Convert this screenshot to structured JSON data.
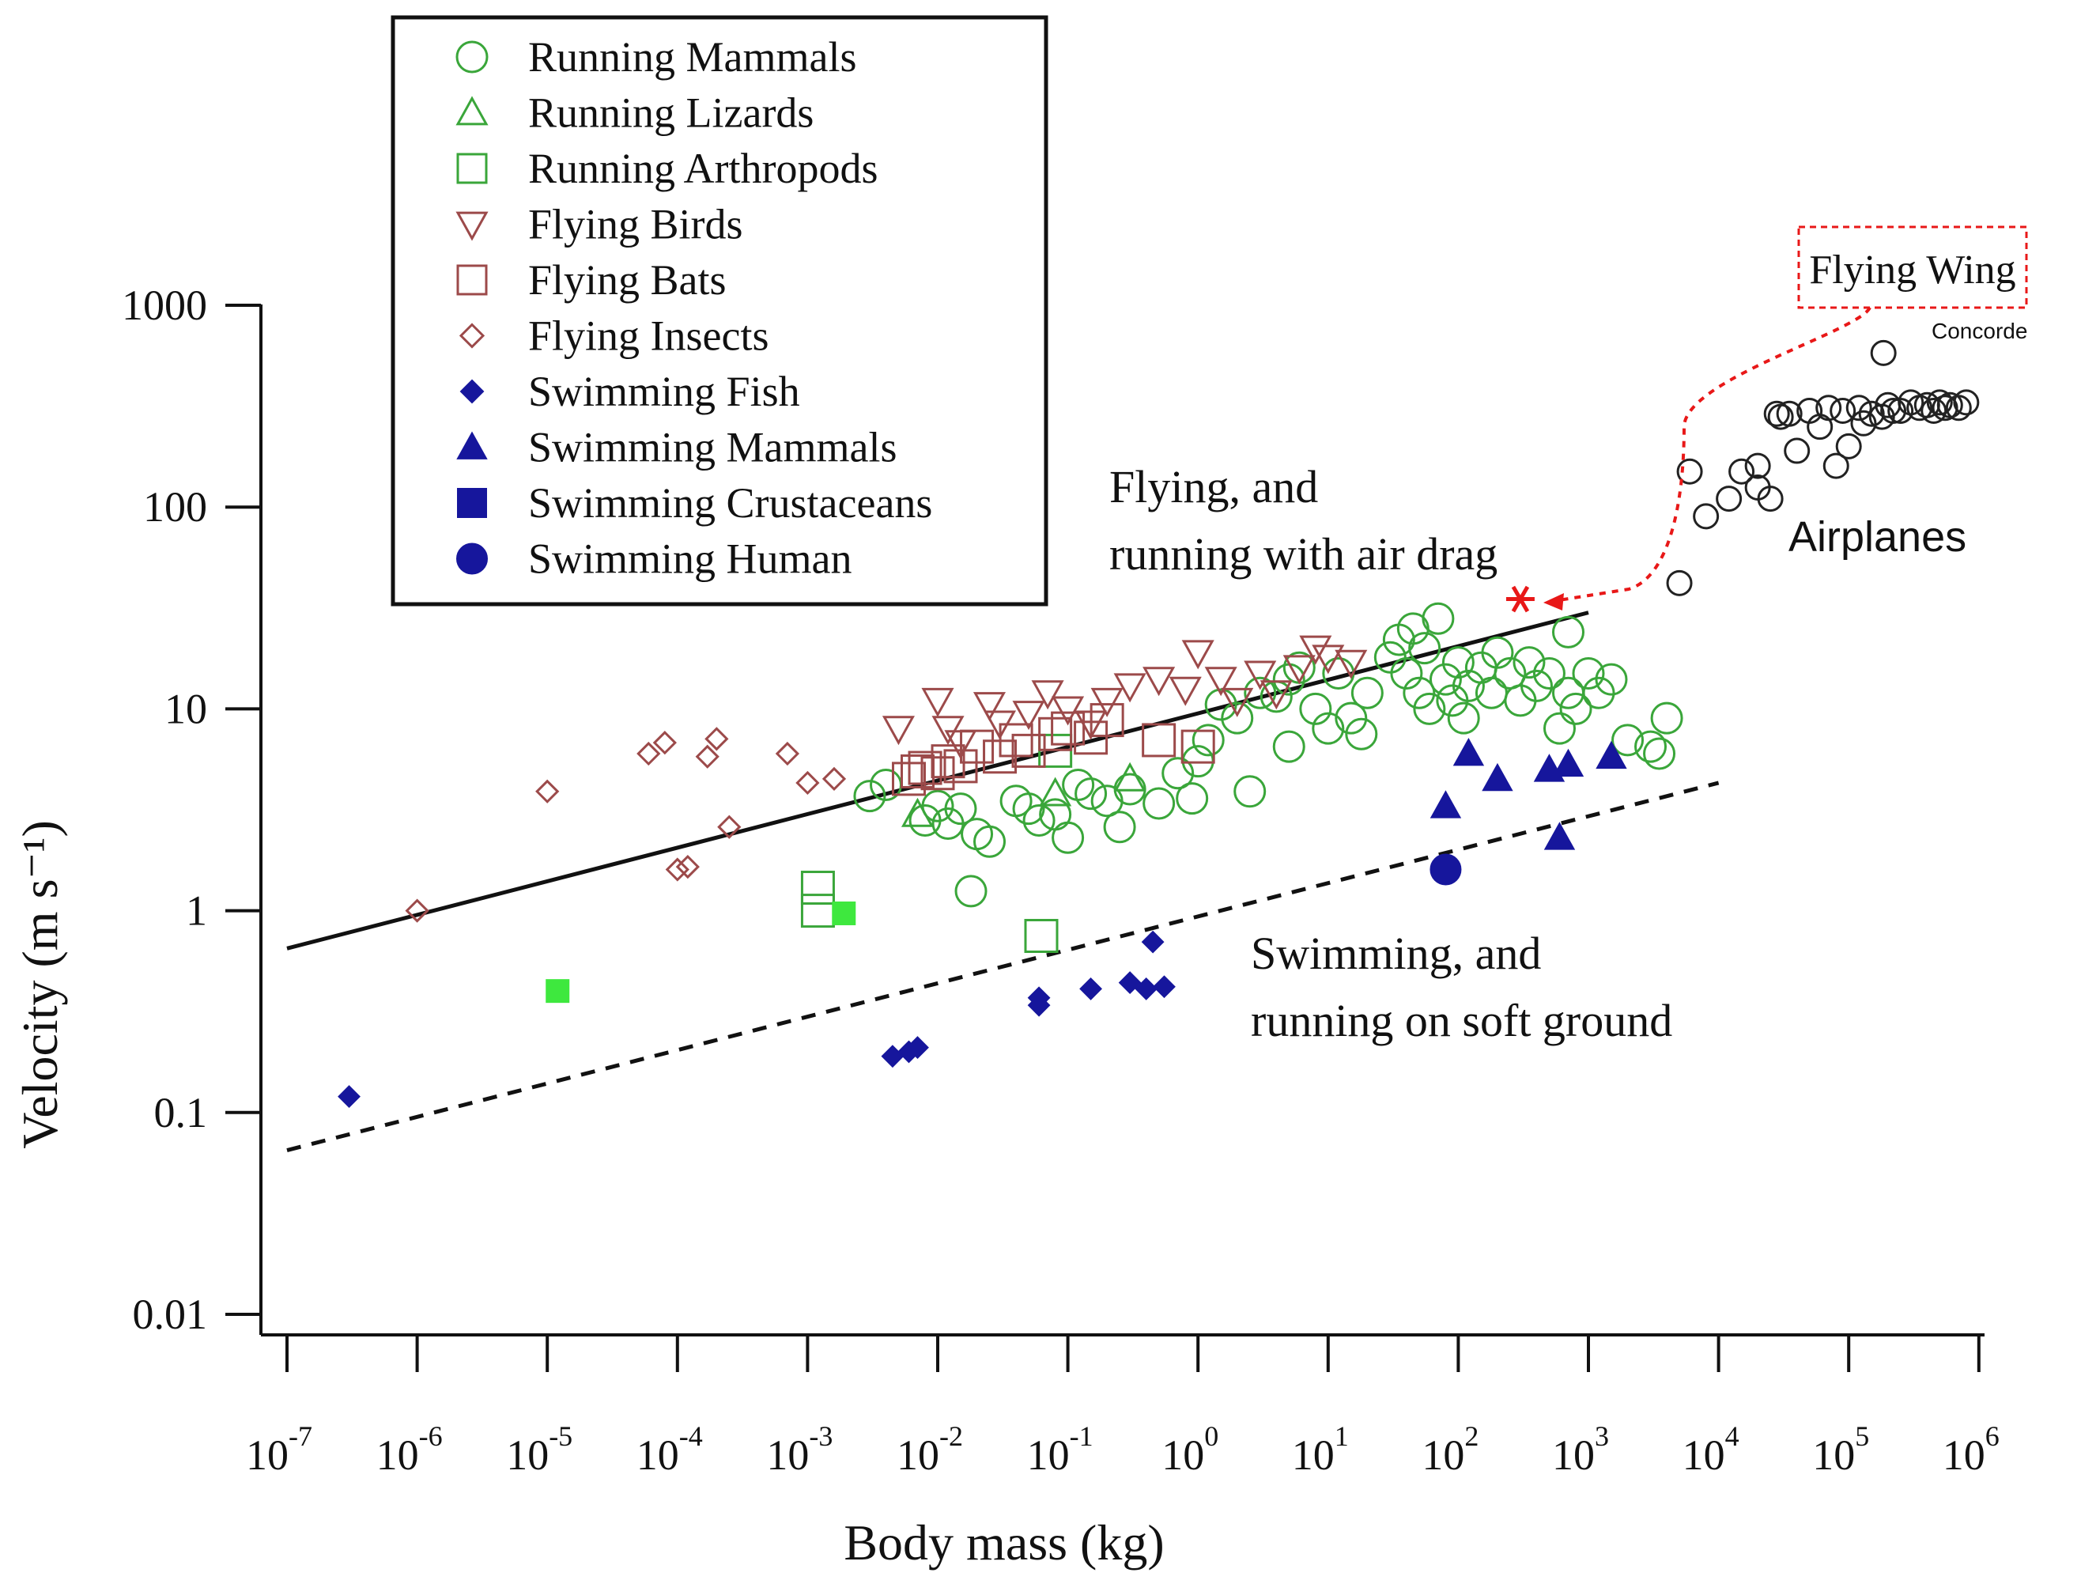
{
  "chart_data": {
    "type": "scatter",
    "title": "",
    "xlabel": "Body mass (kg)",
    "ylabel": "Velocity (m s⁻¹)",
    "x_scale": "log",
    "y_scale": "log",
    "xlim": [
      1e-07,
      1000000.0
    ],
    "ylim": [
      0.01,
      1000
    ],
    "x_ticks": [
      {
        "base": "10",
        "exp": "-7"
      },
      {
        "base": "10",
        "exp": "-6"
      },
      {
        "base": "10",
        "exp": "-5"
      },
      {
        "base": "10",
        "exp": "-4"
      },
      {
        "base": "10",
        "exp": "-3"
      },
      {
        "base": "10",
        "exp": "-2"
      },
      {
        "base": "10",
        "exp": "-1"
      },
      {
        "base": "10",
        "exp": "0"
      },
      {
        "base": "10",
        "exp": "1"
      },
      {
        "base": "10",
        "exp": "2"
      },
      {
        "base": "10",
        "exp": "3"
      },
      {
        "base": "10",
        "exp": "4"
      },
      {
        "base": "10",
        "exp": "5"
      },
      {
        "base": "10",
        "exp": "6"
      }
    ],
    "y_ticks": [
      "0.01",
      "0.1",
      "1",
      "10",
      "100",
      "1000"
    ],
    "legend_position": "top-left",
    "series": [
      {
        "name": "Running Mammals",
        "marker": "circle-open",
        "color": "#3aa63a",
        "points": [
          [
            0.008,
            2.8
          ],
          [
            0.01,
            3.3
          ],
          [
            0.012,
            2.7
          ],
          [
            0.015,
            3.2
          ],
          [
            0.02,
            2.4
          ],
          [
            0.025,
            2.2
          ],
          [
            0.04,
            3.5
          ],
          [
            0.05,
            3.2
          ],
          [
            0.06,
            2.8
          ],
          [
            0.08,
            3.0
          ],
          [
            0.1,
            2.3
          ],
          [
            0.12,
            4.2
          ],
          [
            0.15,
            3.8
          ],
          [
            0.2,
            3.5
          ],
          [
            0.25,
            2.6
          ],
          [
            0.3,
            4.0
          ],
          [
            0.5,
            3.4
          ],
          [
            0.7,
            4.8
          ],
          [
            0.9,
            3.6
          ],
          [
            1.0,
            5.5
          ],
          [
            1.2,
            7.0
          ],
          [
            1.5,
            10.5
          ],
          [
            2.0,
            9.0
          ],
          [
            2.5,
            3.9
          ],
          [
            3.0,
            12.0
          ],
          [
            4.0,
            11.5
          ],
          [
            5.0,
            6.5
          ],
          [
            5.0,
            14.0
          ],
          [
            6.0,
            16.0
          ],
          [
            8.0,
            10.0
          ],
          [
            10.0,
            8.0
          ],
          [
            12.0,
            15.0
          ],
          [
            15.0,
            9.0
          ],
          [
            18.0,
            7.5
          ],
          [
            20.0,
            12.0
          ],
          [
            30.0,
            18.0
          ],
          [
            35.0,
            22.0
          ],
          [
            40.0,
            15.0
          ],
          [
            45.0,
            25.0
          ],
          [
            50.0,
            12.0
          ],
          [
            55.0,
            20.0
          ],
          [
            60.0,
            10.0
          ],
          [
            70.0,
            28.0
          ],
          [
            80.0,
            14.0
          ],
          [
            90.0,
            11.0
          ],
          [
            100.0,
            17.0
          ],
          [
            110.0,
            9.0
          ],
          [
            120.0,
            13.0
          ],
          [
            150.0,
            16.0
          ],
          [
            180.0,
            12.0
          ],
          [
            200.0,
            19.0
          ],
          [
            250.0,
            15.0
          ],
          [
            300.0,
            11.0
          ],
          [
            350.0,
            17.0
          ],
          [
            400.0,
            13.0
          ],
          [
            500.0,
            15.0
          ],
          [
            600.0,
            8.0
          ],
          [
            700.0,
            12.0
          ],
          [
            800.0,
            10.0
          ],
          [
            1000.0,
            15.0
          ],
          [
            1200.0,
            12.0
          ],
          [
            1500.0,
            14.0
          ],
          [
            2000.0,
            7.0
          ],
          [
            3000.0,
            6.5
          ],
          [
            4000.0,
            9.0
          ],
          [
            0.018,
            1.25
          ],
          [
            700.0,
            24.0
          ],
          [
            3500.0,
            6.0
          ],
          [
            0.004,
            4.2
          ],
          [
            0.003,
            3.7
          ]
        ]
      },
      {
        "name": "Running Lizards",
        "marker": "triangle-up-open",
        "color": "#3aa63a",
        "points": [
          [
            0.007,
            3.0
          ],
          [
            0.08,
            3.8
          ],
          [
            0.3,
            4.5
          ]
        ]
      },
      {
        "name": "Running Arthropods",
        "marker": "square-open",
        "color": "#3aa63a",
        "points": [
          [
            0.0012,
            1.3
          ],
          [
            0.0012,
            1.0
          ],
          [
            0.0625,
            0.75
          ],
          [
            0.08,
            6.2
          ]
        ]
      },
      {
        "name": "Flying Birds",
        "marker": "triangle-down-open",
        "color": "#9c4a4a",
        "points": [
          [
            0.005,
            8.0
          ],
          [
            0.01,
            11.0
          ],
          [
            0.012,
            8.0
          ],
          [
            0.015,
            6.8
          ],
          [
            0.025,
            10.5
          ],
          [
            0.03,
            8.5
          ],
          [
            0.05,
            9.5
          ],
          [
            0.07,
            12.0
          ],
          [
            0.1,
            10.0
          ],
          [
            0.15,
            8.5
          ],
          [
            0.2,
            11.0
          ],
          [
            0.3,
            13.0
          ],
          [
            0.5,
            14.0
          ],
          [
            0.8,
            12.5
          ],
          [
            1.0,
            19.0
          ],
          [
            1.5,
            14.0
          ],
          [
            2.0,
            11.0
          ],
          [
            3.0,
            15.0
          ],
          [
            4.0,
            12.0
          ],
          [
            6.0,
            16.0
          ],
          [
            8.0,
            20.0
          ],
          [
            10.0,
            18.0
          ],
          [
            15.0,
            17.0
          ]
        ]
      },
      {
        "name": "Flying Bats",
        "marker": "square-open",
        "color": "#9c4a4a",
        "points": [
          [
            0.006,
            4.5
          ],
          [
            0.007,
            4.9
          ],
          [
            0.008,
            5.1
          ],
          [
            0.01,
            4.8
          ],
          [
            0.012,
            5.5
          ],
          [
            0.015,
            5.2
          ],
          [
            0.02,
            6.5
          ],
          [
            0.03,
            5.8
          ],
          [
            0.04,
            7.0
          ],
          [
            0.05,
            6.2
          ],
          [
            0.08,
            7.5
          ],
          [
            0.1,
            8.0
          ],
          [
            0.15,
            7.2
          ],
          [
            0.2,
            8.8
          ],
          [
            0.5,
            7.0
          ],
          [
            1.0,
            6.5
          ]
        ]
      },
      {
        "name": "Flying Insects",
        "marker": "diamond-open",
        "color": "#9c4a4a",
        "points": [
          [
            1e-06,
            1.0
          ],
          [
            1e-05,
            3.9
          ],
          [
            6e-05,
            6.0
          ],
          [
            8e-05,
            6.8
          ],
          [
            0.0001,
            1.6
          ],
          [
            0.00012,
            1.65
          ],
          [
            0.00017,
            5.8
          ],
          [
            0.0002,
            7.1
          ],
          [
            0.00025,
            2.6
          ],
          [
            0.0007,
            6.0
          ],
          [
            0.001,
            4.3
          ],
          [
            0.0016,
            4.5
          ]
        ]
      },
      {
        "name": "Swimming Fish",
        "marker": "diamond-filled",
        "color": "#16169c",
        "points": [
          [
            3e-07,
            0.12
          ],
          [
            0.0045,
            0.19
          ],
          [
            0.006,
            0.2
          ],
          [
            0.007,
            0.21
          ],
          [
            0.06,
            0.34
          ],
          [
            0.06,
            0.37
          ],
          [
            0.15,
            0.41
          ],
          [
            0.3,
            0.44
          ],
          [
            0.4,
            0.41
          ],
          [
            0.45,
            0.7
          ],
          [
            0.55,
            0.42
          ]
        ]
      },
      {
        "name": "Swimming Mammals",
        "marker": "triangle-up-filled",
        "color": "#16169c",
        "points": [
          [
            80.0,
            3.3
          ],
          [
            120.0,
            6.0
          ],
          [
            200.0,
            4.5
          ],
          [
            500.0,
            5.0
          ],
          [
            700.0,
            5.3
          ],
          [
            600.0,
            2.3
          ],
          [
            1500.0,
            5.8
          ]
        ]
      },
      {
        "name": "Swimming Crustaceans",
        "marker": "square-filled",
        "color": "#16169c",
        "points": [
          [
            1.2e-05,
            0.4
          ],
          [
            0.0019,
            0.97
          ]
        ],
        "rendered_color": "#3ee83e"
      },
      {
        "name": "Swimming Human",
        "marker": "circle-filled",
        "color": "#16169c",
        "points": [
          [
            80.0,
            1.6
          ]
        ]
      },
      {
        "name": "Airplanes",
        "marker": "circle-open",
        "color": "#222222",
        "points": [
          [
            5000,
            42
          ],
          [
            6000,
            150
          ],
          [
            8000,
            90
          ],
          [
            12000,
            110
          ],
          [
            15000,
            150
          ],
          [
            20000,
            160
          ],
          [
            20000,
            125
          ],
          [
            25000,
            110
          ],
          [
            30000,
            280
          ],
          [
            35000,
            290
          ],
          [
            40000,
            190
          ],
          [
            50000,
            300
          ],
          [
            60000,
            250
          ],
          [
            70000,
            310
          ],
          [
            80000,
            160
          ],
          [
            100000,
            200
          ],
          [
            90000,
            300
          ],
          [
            120000,
            310
          ],
          [
            150000,
            290
          ],
          [
            200000,
            320
          ],
          [
            250000,
            300
          ],
          [
            300000,
            330
          ],
          [
            350000,
            310
          ],
          [
            400000,
            320
          ],
          [
            450000,
            300
          ],
          [
            500000,
            330
          ],
          [
            550000,
            310
          ],
          [
            600000,
            320
          ],
          [
            700000,
            310
          ],
          [
            800000,
            330
          ],
          [
            180000,
            280
          ],
          [
            28000,
            290
          ],
          [
            130000,
            260
          ],
          [
            220000,
            300
          ]
        ]
      },
      {
        "name": "Concorde",
        "marker": "circle-open",
        "color": "#222222",
        "points": [
          [
            185000,
            580
          ]
        ]
      }
    ],
    "fit_lines": [
      {
        "label_line1": "Flying, and",
        "label_line2": "running with air drag",
        "style": "solid",
        "color": "#111111",
        "x": [
          1e-07,
          1000
        ],
        "y": [
          0.65,
          30
        ]
      },
      {
        "label_line1": "Swimming, and",
        "label_line2": "running on soft ground",
        "style": "dashed",
        "color": "#111111",
        "x": [
          1e-07,
          10000
        ],
        "y": [
          0.065,
          4.3
        ]
      }
    ],
    "annotations": {
      "flying_wing": {
        "label": "Flying Wing",
        "marker": "asterisk",
        "color": "#e81818",
        "point": [
          300,
          35
        ]
      },
      "airplanes_label": "Airplanes",
      "concorde_label": "Concorde"
    }
  }
}
